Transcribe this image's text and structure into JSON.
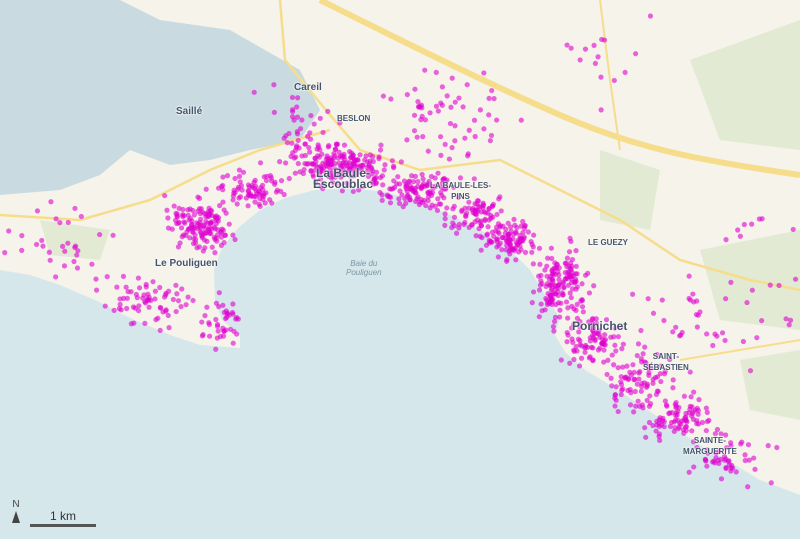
{
  "map": {
    "colors": {
      "sea": "#d5e7eb",
      "land": "#f5f3ea",
      "marsh": "#c9dbe0",
      "road": "#f6dd8c",
      "green": "#e2ead3",
      "points": "#e000d0"
    },
    "labels": {
      "saille": "Saillé",
      "careil": "Careil",
      "beslon": "BESLON",
      "la_baule": "La Baule-\nEscoublac",
      "la_baule_les_pins": "LA BAULE-LES-\nPINS",
      "le_pouliguen": "Le Pouliguen",
      "le_guezy": "LE GUEZY",
      "pornichet": "Pornichet",
      "saint_sebastien": "SAINT-\nSÉBASTIEN",
      "sainte_marguerite": "SAINTE-\nMARGUERITE",
      "bay": "Baie du\nPouliguen"
    },
    "north_arrow": "N",
    "scale_bar": "1 km"
  }
}
